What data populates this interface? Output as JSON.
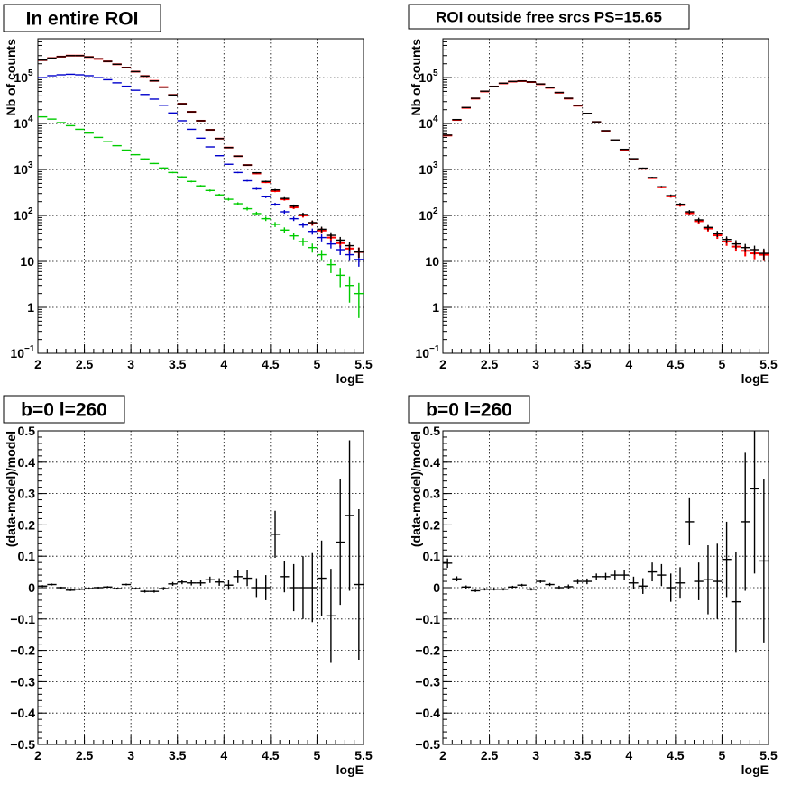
{
  "colors": {
    "data": "#000000",
    "total": "#ff0000",
    "component_blue": "#0000cc",
    "component_green": "#00cc00",
    "grid": "#000000"
  },
  "chart_data": [
    {
      "type": "scatter",
      "title": "In entire ROI",
      "xlabel": "logE",
      "ylabel": "Nb of counts",
      "xlim": [
        2,
        5.5
      ],
      "ylim": [
        0.1,
        700000
      ],
      "log_y": true,
      "grid": true,
      "legend": "none",
      "x_ticks": [
        "2",
        "2.5",
        "3",
        "3.5",
        "4",
        "4.5",
        "5",
        "5.5"
      ],
      "y_ticks": [
        {
          "v": 0.1,
          "base": "10",
          "exp": "−1"
        },
        {
          "v": 1,
          "base": "1",
          "exp": ""
        },
        {
          "v": 10,
          "base": "10",
          "exp": ""
        },
        {
          "v": 100,
          "base": "10",
          "exp": "2"
        },
        {
          "v": 1000,
          "base": "10",
          "exp": "3"
        },
        {
          "v": 10000,
          "base": "10",
          "exp": "4"
        },
        {
          "v": 100000,
          "base": "10",
          "exp": "5"
        }
      ],
      "x": [
        2.05,
        2.15,
        2.25,
        2.35,
        2.45,
        2.55,
        2.65,
        2.75,
        2.85,
        2.95,
        3.05,
        3.15,
        3.25,
        3.35,
        3.45,
        3.55,
        3.65,
        3.75,
        3.85,
        3.95,
        4.05,
        4.15,
        4.25,
        4.35,
        4.45,
        4.55,
        4.65,
        4.75,
        4.85,
        4.95,
        5.05,
        5.15,
        5.25,
        5.35,
        5.45
      ],
      "series": [
        {
          "color": "total",
          "values": [
            240000,
            265000,
            285000,
            300000,
            300000,
            280000,
            255000,
            225000,
            195000,
            165000,
            135000,
            108000,
            85000,
            62000,
            42000,
            27000,
            18000,
            11500,
            7300,
            4700,
            3000,
            1950,
            1250,
            820,
            530,
            340,
            225,
            150,
            100,
            68,
            47,
            33,
            25,
            19,
            16
          ]
        },
        {
          "color": "component_blue",
          "values": [
            100000,
            110000,
            115000,
            118000,
            115000,
            110000,
            100000,
            90000,
            77000,
            65000,
            53000,
            43000,
            34000,
            25000,
            17000,
            11500,
            7500,
            4800,
            3100,
            2000,
            1300,
            860,
            570,
            380,
            255,
            175,
            120,
            85,
            62,
            45,
            33,
            24,
            18,
            14,
            11
          ]
        },
        {
          "color": "component_green",
          "values": [
            14000,
            12500,
            10500,
            9000,
            7500,
            6200,
            5000,
            4100,
            3300,
            2650,
            2100,
            1700,
            1350,
            1080,
            860,
            690,
            550,
            440,
            350,
            280,
            225,
            180,
            140,
            110,
            85,
            64,
            48,
            36,
            27,
            20,
            14,
            8.5,
            5,
            3,
            2
          ]
        },
        {
          "color": "data",
          "values": [
            240000,
            265000,
            285000,
            300000,
            300000,
            280000,
            255000,
            225000,
            195000,
            165000,
            135000,
            108000,
            85000,
            62000,
            42000,
            27000,
            18000,
            11500,
            7300,
            4700,
            3000,
            1950,
            1250,
            850,
            550,
            360,
            235,
            160,
            105,
            70,
            50,
            37,
            29,
            22,
            16
          ],
          "errors": [
            490,
            515,
            534,
            548,
            548,
            529,
            505,
            474,
            442,
            406,
            367,
            329,
            292,
            249,
            205,
            164,
            134,
            107,
            85,
            69,
            55,
            44,
            35,
            29,
            23,
            19,
            15,
            13,
            10,
            8,
            7,
            6,
            5,
            5,
            4
          ]
        }
      ]
    },
    {
      "type": "scatter",
      "title": "ROI outside free srcs PS=15.65",
      "xlabel": "logE",
      "ylabel": "Nb of counts",
      "xlim": [
        2,
        5.5
      ],
      "ylim": [
        0.1,
        700000
      ],
      "log_y": true,
      "grid": true,
      "legend": "none",
      "x_ticks": [
        "2",
        "2.5",
        "3",
        "3.5",
        "4",
        "4.5",
        "5",
        "5.5"
      ],
      "y_ticks": [
        {
          "v": 0.1,
          "base": "10",
          "exp": "−1"
        },
        {
          "v": 1,
          "base": "1",
          "exp": ""
        },
        {
          "v": 10,
          "base": "10",
          "exp": ""
        },
        {
          "v": 100,
          "base": "10",
          "exp": "2"
        },
        {
          "v": 1000,
          "base": "10",
          "exp": "3"
        },
        {
          "v": 10000,
          "base": "10",
          "exp": "4"
        },
        {
          "v": 100000,
          "base": "10",
          "exp": "5"
        }
      ],
      "x": [
        2.05,
        2.15,
        2.25,
        2.35,
        2.45,
        2.55,
        2.65,
        2.75,
        2.85,
        2.95,
        3.05,
        3.15,
        3.25,
        3.35,
        3.45,
        3.55,
        3.65,
        3.75,
        3.85,
        3.95,
        4.05,
        4.15,
        4.25,
        4.35,
        4.45,
        4.55,
        4.65,
        4.75,
        4.85,
        4.95,
        5.05,
        5.15,
        5.25,
        5.35,
        5.45
      ],
      "series": [
        {
          "color": "total",
          "values": [
            5500,
            12000,
            22000,
            35000,
            50000,
            64000,
            75000,
            82000,
            84000,
            80000,
            72000,
            60000,
            47000,
            35000,
            24500,
            16500,
            10800,
            6900,
            4300,
            2700,
            1680,
            1040,
            650,
            410,
            260,
            168,
            112,
            75,
            52,
            37,
            27,
            21,
            17,
            15,
            14
          ]
        },
        {
          "color": "data",
          "values": [
            5600,
            12200,
            22300,
            35400,
            50500,
            64500,
            75500,
            82500,
            84500,
            80500,
            72500,
            60500,
            47500,
            35400,
            24800,
            16700,
            10900,
            7000,
            4400,
            2750,
            1720,
            1070,
            670,
            420,
            270,
            175,
            120,
            80,
            55,
            40,
            30,
            24,
            20,
            18,
            15
          ],
          "errors": [
            75,
            110,
            149,
            188,
            225,
            254,
            275,
            287,
            291,
            284,
            269,
            246,
            218,
            188,
            157,
            129,
            104,
            84,
            66,
            52,
            41,
            33,
            26,
            20,
            16,
            13,
            11,
            9,
            7,
            6,
            5,
            5,
            4,
            4,
            4
          ]
        }
      ]
    },
    {
      "type": "scatter",
      "title": "b=0 l=260",
      "xlabel": "logE",
      "ylabel": "(data-model)/model",
      "xlim": [
        2,
        5.5
      ],
      "ylim": [
        -0.5,
        0.5
      ],
      "log_y": false,
      "grid": true,
      "legend": "none",
      "x_ticks": [
        "2",
        "2.5",
        "3",
        "3.5",
        "4",
        "4.5",
        "5",
        "5.5"
      ],
      "y_ticks": [
        {
          "v": -0.5,
          "label": "−0.5"
        },
        {
          "v": -0.4,
          "label": "−0.4"
        },
        {
          "v": -0.3,
          "label": "−0.3"
        },
        {
          "v": -0.2,
          "label": "−0.2"
        },
        {
          "v": -0.1,
          "label": "−0.1"
        },
        {
          "v": 0,
          "label": "0"
        },
        {
          "v": 0.1,
          "label": "0.1"
        },
        {
          "v": 0.2,
          "label": "0.2"
        },
        {
          "v": 0.3,
          "label": "0.3"
        },
        {
          "v": 0.4,
          "label": "0.4"
        },
        {
          "v": 0.5,
          "label": "0.5"
        }
      ],
      "x": [
        2.05,
        2.15,
        2.25,
        2.35,
        2.45,
        2.55,
        2.65,
        2.75,
        2.85,
        2.95,
        3.05,
        3.15,
        3.25,
        3.35,
        3.45,
        3.55,
        3.65,
        3.75,
        3.85,
        3.95,
        4.05,
        4.15,
        4.25,
        4.35,
        4.45,
        4.55,
        4.65,
        4.75,
        4.85,
        4.95,
        5.05,
        5.15,
        5.25,
        5.35,
        5.45
      ],
      "series": [
        {
          "color": "data",
          "values": [
            0.005,
            0.01,
            0.0,
            -0.008,
            -0.005,
            -0.003,
            0.0,
            0.002,
            -0.003,
            0.01,
            -0.003,
            -0.012,
            -0.012,
            -0.003,
            0.012,
            0.018,
            0.015,
            0.015,
            0.025,
            0.018,
            0.008,
            0.035,
            0.03,
            0.0,
            0.0,
            0.17,
            0.035,
            0.0,
            0.0,
            0.0,
            0.03,
            -0.09,
            0.145,
            0.23,
            0.01
          ],
          "errors": [
            0.003,
            0.003,
            0.003,
            0.003,
            0.003,
            0.003,
            0.003,
            0.003,
            0.003,
            0.003,
            0.003,
            0.004,
            0.004,
            0.005,
            0.006,
            0.007,
            0.008,
            0.009,
            0.01,
            0.012,
            0.015,
            0.02,
            0.025,
            0.03,
            0.04,
            0.075,
            0.05,
            0.075,
            0.1,
            0.11,
            0.12,
            0.15,
            0.2,
            0.24,
            0.24
          ]
        }
      ]
    },
    {
      "type": "scatter",
      "title": "b=0 l=260",
      "xlabel": "logE",
      "ylabel": "(data-model)/model",
      "xlim": [
        2,
        5.5
      ],
      "ylim": [
        -0.5,
        0.5
      ],
      "log_y": false,
      "grid": true,
      "legend": "none",
      "x_ticks": [
        "2",
        "2.5",
        "3",
        "3.5",
        "4",
        "4.5",
        "5",
        "5.5"
      ],
      "y_ticks": [
        {
          "v": -0.5,
          "label": "−0.5"
        },
        {
          "v": -0.4,
          "label": "−0.4"
        },
        {
          "v": -0.3,
          "label": "−0.3"
        },
        {
          "v": -0.2,
          "label": "−0.2"
        },
        {
          "v": -0.1,
          "label": "−0.1"
        },
        {
          "v": 0,
          "label": "0"
        },
        {
          "v": 0.1,
          "label": "0.1"
        },
        {
          "v": 0.2,
          "label": "0.2"
        },
        {
          "v": 0.3,
          "label": "0.3"
        },
        {
          "v": 0.4,
          "label": "0.4"
        },
        {
          "v": 0.5,
          "label": "0.5"
        }
      ],
      "x": [
        2.05,
        2.15,
        2.25,
        2.35,
        2.45,
        2.55,
        2.65,
        2.75,
        2.85,
        2.95,
        3.05,
        3.15,
        3.25,
        3.35,
        3.45,
        3.55,
        3.65,
        3.75,
        3.85,
        3.95,
        4.05,
        4.15,
        4.25,
        4.35,
        4.45,
        4.55,
        4.65,
        4.75,
        4.85,
        4.95,
        5.05,
        5.15,
        5.25,
        5.35,
        5.45
      ],
      "series": [
        {
          "color": "data",
          "values": [
            0.078,
            0.028,
            0.002,
            -0.01,
            -0.005,
            -0.005,
            -0.005,
            0.002,
            0.008,
            -0.005,
            0.02,
            0.01,
            0.0,
            0.003,
            0.02,
            0.02,
            0.035,
            0.035,
            0.04,
            0.04,
            0.015,
            0.005,
            0.05,
            0.04,
            0.0,
            0.015,
            0.21,
            0.02,
            0.025,
            0.02,
            0.09,
            -0.045,
            0.21,
            0.315,
            0.085
          ],
          "errors": [
            0.015,
            0.008,
            0.005,
            0.004,
            0.004,
            0.004,
            0.004,
            0.004,
            0.004,
            0.004,
            0.005,
            0.005,
            0.006,
            0.007,
            0.008,
            0.009,
            0.01,
            0.012,
            0.014,
            0.016,
            0.02,
            0.025,
            0.03,
            0.035,
            0.045,
            0.05,
            0.075,
            0.06,
            0.11,
            0.12,
            0.12,
            0.16,
            0.22,
            0.27,
            0.26
          ]
        }
      ]
    }
  ]
}
